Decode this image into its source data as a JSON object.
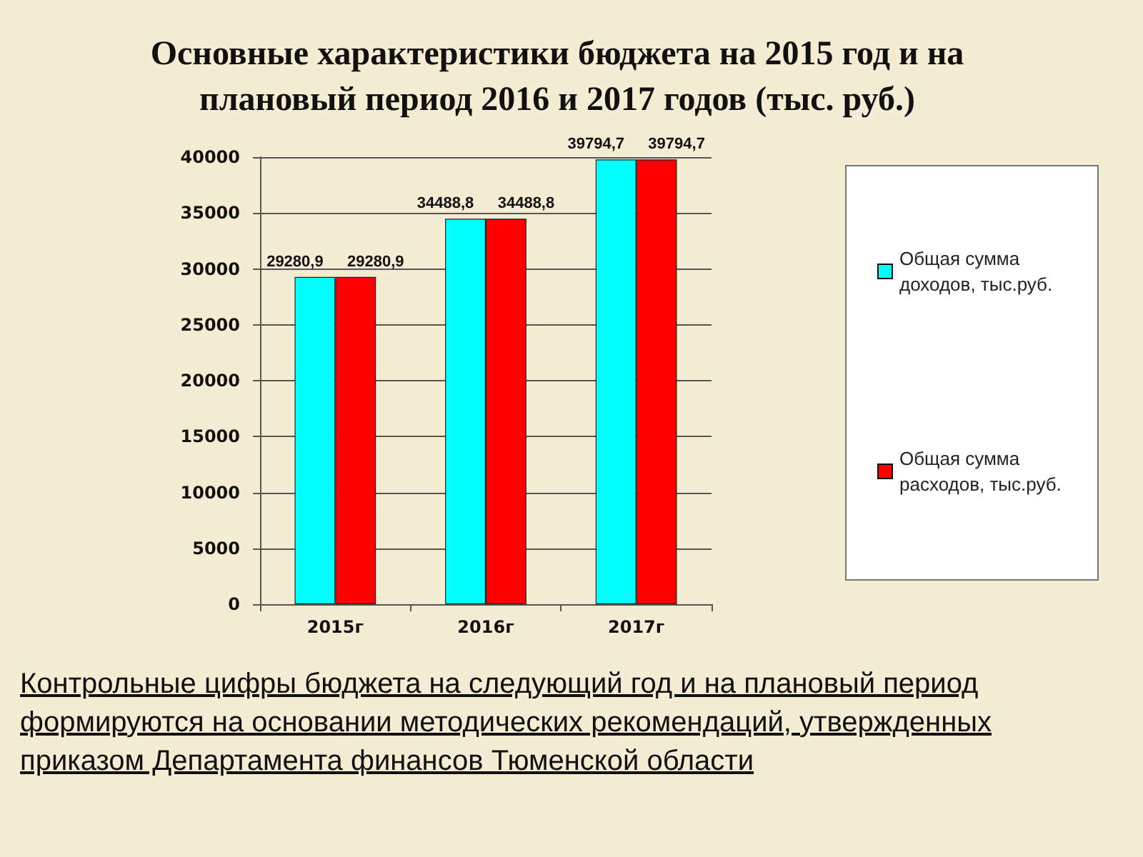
{
  "chart_data": {
    "type": "bar",
    "title": "Основные характеристики бюджета на 2015 год и на плановый период 2016 и 2017 годов (тыс. руб.)",
    "categories": [
      "2015г",
      "2016г",
      "2017г"
    ],
    "series": [
      {
        "name": "Общая сумма доходов, тыс.руб.",
        "color": "#00ffff",
        "values": [
          29280.9,
          34488.8,
          39794.7
        ],
        "value_labels": [
          "29280,9",
          "34488,8",
          "39794,7"
        ]
      },
      {
        "name": "Общая сумма расходов, тыс.руб.",
        "color": "#ff0000",
        "values": [
          29280.9,
          34488.8,
          39794.7
        ],
        "value_labels": [
          "29280,9",
          "34488,8",
          "39794,7"
        ]
      }
    ],
    "ylim": [
      0,
      40000
    ],
    "yticks": [
      0,
      5000,
      10000,
      15000,
      20000,
      25000,
      30000,
      35000,
      40000
    ],
    "grid": "y",
    "legend": "right",
    "annotations": [
      "Контрольные цифры бюджета на следующий год и на плановый период формируются на основании методических рекомендаций, утвержденных приказом Департамента финансов Тюменской области"
    ]
  }
}
